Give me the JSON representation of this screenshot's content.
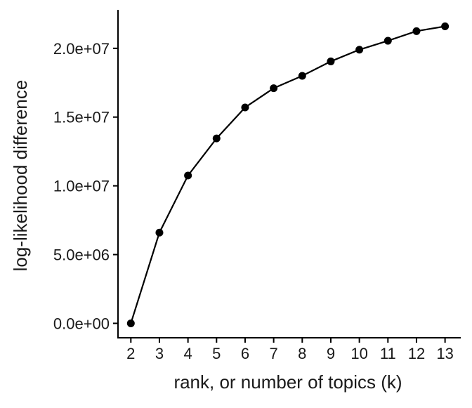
{
  "chart_data": {
    "type": "line",
    "xlabel": "rank, or number of topics (k)",
    "ylabel": "log-likelihood difference",
    "x": [
      2,
      3,
      4,
      5,
      6,
      7,
      8,
      9,
      10,
      11,
      12,
      13
    ],
    "series": [
      {
        "values": [
          0,
          6600000,
          10750000,
          13450000,
          15700000,
          17100000,
          18000000,
          19050000,
          19900000,
          20550000,
          21250000,
          21600000
        ]
      }
    ],
    "xticks": [
      "2",
      "3",
      "4",
      "5",
      "6",
      "7",
      "8",
      "9",
      "10",
      "11",
      "12",
      "13"
    ],
    "yticks": [
      {
        "value": 0,
        "label": "0.0e+00"
      },
      {
        "value": 5000000,
        "label": "5.0e+06"
      },
      {
        "value": 10000000,
        "label": "1.0e+07"
      },
      {
        "value": 15000000,
        "label": "1.5e+07"
      },
      {
        "value": 20000000,
        "label": "2.0e+07"
      }
    ],
    "xlim": [
      1.55,
      13.55
    ],
    "ylim": [
      -1050000,
      22800000
    ],
    "grid": false,
    "legend": "none",
    "colors": {
      "line": "#000000",
      "point": "#000000"
    }
  }
}
